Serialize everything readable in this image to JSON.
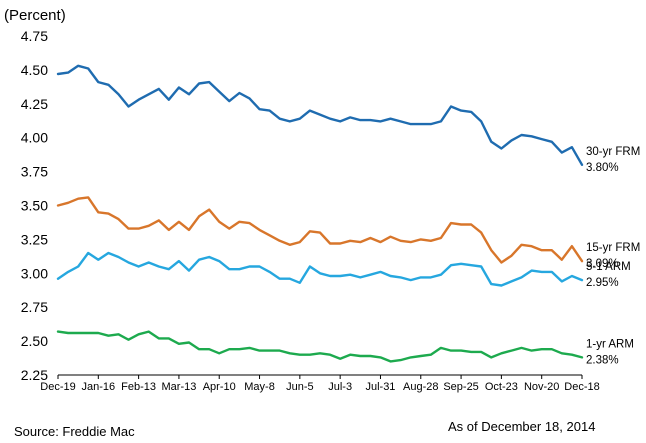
{
  "chart_data": {
    "type": "line",
    "title": "",
    "ylabel": "(Percent)",
    "xlabel": "",
    "ylim": [
      2.25,
      4.75
    ],
    "yticks": [
      2.25,
      2.5,
      2.75,
      3.0,
      3.25,
      3.5,
      3.75,
      4.0,
      4.25,
      4.5,
      4.75
    ],
    "ytick_labels": [
      "2.25",
      "2.50",
      "2.75",
      "3.00",
      "3.25",
      "3.50",
      "3.75",
      "4.00",
      "4.25",
      "4.50",
      "4.75"
    ],
    "xtick_labels": [
      "Dec-19",
      "Jan-16",
      "Feb-13",
      "Mar-13",
      "Apr-10",
      "May-8",
      "Jun-5",
      "Jul-3",
      "Jul-31",
      "Aug-28",
      "Sep-25",
      "Oct-23",
      "Nov-20",
      "Dec-18"
    ],
    "grid": false,
    "series": [
      {
        "name": "30-yr FRM",
        "end_label": "3.80%",
        "color": "#1F6CB0",
        "values": [
          4.47,
          4.48,
          4.53,
          4.51,
          4.41,
          4.39,
          4.32,
          4.23,
          4.28,
          4.32,
          4.36,
          4.28,
          4.37,
          4.32,
          4.4,
          4.41,
          4.34,
          4.27,
          4.33,
          4.29,
          4.21,
          4.2,
          4.14,
          4.12,
          4.14,
          4.2,
          4.17,
          4.14,
          4.12,
          4.15,
          4.13,
          4.13,
          4.12,
          4.14,
          4.12,
          4.1,
          4.1,
          4.1,
          4.12,
          4.23,
          4.2,
          4.19,
          4.12,
          3.97,
          3.92,
          3.98,
          4.02,
          4.01,
          3.99,
          3.97,
          3.89,
          3.93,
          3.8
        ]
      },
      {
        "name": "15-yr FRM",
        "end_label": "3.09%",
        "color": "#D8762B",
        "values": [
          3.5,
          3.52,
          3.55,
          3.56,
          3.45,
          3.44,
          3.4,
          3.33,
          3.33,
          3.35,
          3.39,
          3.32,
          3.38,
          3.32,
          3.42,
          3.47,
          3.38,
          3.33,
          3.38,
          3.37,
          3.32,
          3.28,
          3.24,
          3.21,
          3.23,
          3.31,
          3.3,
          3.22,
          3.22,
          3.24,
          3.23,
          3.26,
          3.23,
          3.27,
          3.24,
          3.23,
          3.25,
          3.24,
          3.26,
          3.37,
          3.36,
          3.36,
          3.3,
          3.17,
          3.08,
          3.13,
          3.21,
          3.2,
          3.17,
          3.17,
          3.1,
          3.2,
          3.09
        ]
      },
      {
        "name": "5-1 ARM",
        "end_label": "2.95%",
        "color": "#26A7DF",
        "values": [
          2.96,
          3.01,
          3.05,
          3.15,
          3.1,
          3.15,
          3.12,
          3.08,
          3.05,
          3.08,
          3.05,
          3.03,
          3.09,
          3.02,
          3.1,
          3.12,
          3.09,
          3.03,
          3.03,
          3.05,
          3.05,
          3.01,
          2.96,
          2.96,
          2.93,
          3.05,
          3.0,
          2.98,
          2.98,
          2.99,
          2.97,
          2.99,
          3.01,
          2.98,
          2.97,
          2.95,
          2.97,
          2.97,
          2.99,
          3.06,
          3.07,
          3.06,
          3.05,
          2.92,
          2.91,
          2.94,
          2.97,
          3.02,
          3.01,
          3.01,
          2.94,
          2.98,
          2.95
        ]
      },
      {
        "name": "1-yr ARM",
        "end_label": "2.38%",
        "color": "#1DAA4E",
        "values": [
          2.57,
          2.56,
          2.56,
          2.56,
          2.56,
          2.54,
          2.55,
          2.51,
          2.55,
          2.57,
          2.52,
          2.52,
          2.48,
          2.49,
          2.44,
          2.44,
          2.41,
          2.44,
          2.44,
          2.45,
          2.43,
          2.43,
          2.43,
          2.41,
          2.4,
          2.4,
          2.41,
          2.4,
          2.37,
          2.4,
          2.39,
          2.39,
          2.38,
          2.35,
          2.36,
          2.38,
          2.39,
          2.4,
          2.45,
          2.43,
          2.43,
          2.42,
          2.42,
          2.38,
          2.41,
          2.43,
          2.45,
          2.43,
          2.44,
          2.44,
          2.41,
          2.4,
          2.38
        ]
      }
    ]
  },
  "footer": {
    "source": "Source: Freddie Mac",
    "as_of": "As of December 18, 2014"
  }
}
